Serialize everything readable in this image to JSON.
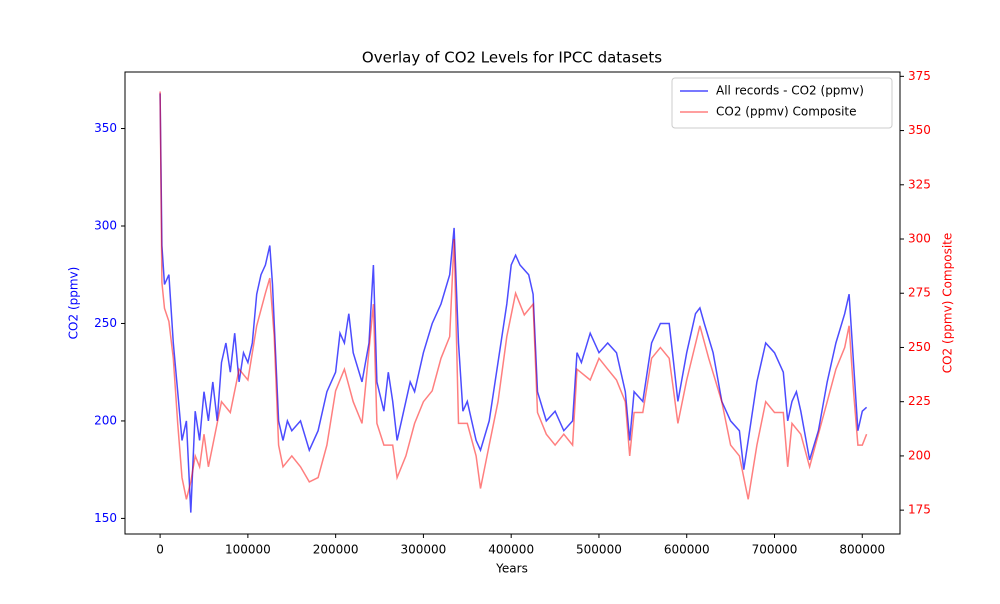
{
  "chart_data": {
    "type": "line",
    "title": "Overlay of CO2 Levels for IPCC datasets",
    "xlabel": "Years",
    "ylabel": "CO2 (ppmv)",
    "y2label": "CO2 (ppmv) Composite",
    "xlim": [
      -40000,
      843000
    ],
    "xticks": [
      0,
      100000,
      200000,
      300000,
      400000,
      500000,
      600000,
      700000,
      800000
    ],
    "ylim": [
      142,
      379
    ],
    "yticks": [
      150,
      200,
      250,
      300,
      350
    ],
    "ycolor": "#0000ff",
    "y2lim": [
      164,
      377
    ],
    "y2ticks": [
      175,
      200,
      225,
      250,
      275,
      300,
      325,
      350,
      375
    ],
    "y2color": "#ff0000",
    "legend": "upper right",
    "series": [
      {
        "name": "All records - CO2 (ppmv)",
        "color": "#0000ff",
        "opacity": 0.7,
        "x": [
          0,
          2000,
          5000,
          10000,
          15000,
          20000,
          25000,
          30000,
          35000,
          40000,
          45000,
          50000,
          55000,
          60000,
          65000,
          70000,
          75000,
          80000,
          85000,
          90000,
          95000,
          100000,
          105000,
          110000,
          115000,
          120000,
          125000,
          128000,
          135000,
          140000,
          145000,
          150000,
          160000,
          170000,
          180000,
          190000,
          200000,
          205000,
          210000,
          215000,
          220000,
          230000,
          238000,
          243000,
          247000,
          255000,
          260000,
          265000,
          270000,
          275000,
          285000,
          290000,
          300000,
          310000,
          320000,
          330000,
          335000,
          340000,
          345000,
          350000,
          360000,
          365000,
          375000,
          385000,
          395000,
          400000,
          405000,
          410000,
          420000,
          425000,
          430000,
          440000,
          450000,
          460000,
          470000,
          475000,
          480000,
          490000,
          500000,
          510000,
          520000,
          530000,
          535000,
          540000,
          550000,
          560000,
          570000,
          580000,
          585000,
          590000,
          600000,
          610000,
          615000,
          620000,
          630000,
          640000,
          650000,
          660000,
          665000,
          670000,
          680000,
          690000,
          700000,
          710000,
          715000,
          720000,
          725000,
          730000,
          740000,
          750000,
          760000,
          770000,
          780000,
          785000,
          790000,
          795000,
          800000,
          805000
        ],
        "values": [
          368,
          290,
          270,
          275,
          240,
          215,
          190,
          200,
          153,
          205,
          190,
          215,
          200,
          220,
          200,
          230,
          240,
          225,
          245,
          220,
          235,
          230,
          240,
          265,
          275,
          280,
          290,
          270,
          200,
          190,
          200,
          195,
          200,
          185,
          195,
          215,
          225,
          245,
          240,
          255,
          235,
          220,
          240,
          280,
          220,
          205,
          225,
          210,
          190,
          200,
          220,
          215,
          235,
          250,
          260,
          275,
          299,
          240,
          205,
          210,
          190,
          185,
          200,
          230,
          260,
          280,
          285,
          280,
          275,
          265,
          215,
          200,
          205,
          195,
          200,
          235,
          230,
          245,
          235,
          240,
          235,
          215,
          190,
          215,
          210,
          240,
          250,
          250,
          230,
          210,
          235,
          255,
          258,
          250,
          235,
          210,
          200,
          195,
          175,
          190,
          220,
          240,
          235,
          225,
          200,
          210,
          215,
          205,
          180,
          195,
          220,
          240,
          255,
          265,
          230,
          195,
          205,
          207
        ]
      },
      {
        "name": "CO2 (ppmv) Composite",
        "color": "#ff0000",
        "opacity": 0.5,
        "axis": "y2",
        "x": [
          0,
          2000,
          5000,
          10000,
          15000,
          20000,
          25000,
          30000,
          35000,
          40000,
          45000,
          50000,
          55000,
          60000,
          70000,
          80000,
          90000,
          100000,
          110000,
          120000,
          125000,
          130000,
          135000,
          140000,
          150000,
          160000,
          170000,
          180000,
          190000,
          200000,
          210000,
          220000,
          230000,
          243000,
          247000,
          255000,
          265000,
          270000,
          280000,
          290000,
          300000,
          310000,
          320000,
          330000,
          335000,
          340000,
          350000,
          360000,
          365000,
          375000,
          385000,
          395000,
          405000,
          415000,
          425000,
          430000,
          440000,
          450000,
          460000,
          470000,
          475000,
          490000,
          500000,
          510000,
          520000,
          530000,
          535000,
          540000,
          550000,
          560000,
          570000,
          580000,
          585000,
          590000,
          600000,
          615000,
          625000,
          640000,
          650000,
          660000,
          665000,
          670000,
          680000,
          690000,
          700000,
          710000,
          715000,
          720000,
          730000,
          740000,
          750000,
          760000,
          770000,
          780000,
          785000,
          790000,
          795000,
          800000,
          805000
        ],
        "values": [
          368,
          280,
          268,
          262,
          245,
          215,
          190,
          180,
          188,
          200,
          195,
          210,
          195,
          205,
          225,
          220,
          240,
          235,
          260,
          275,
          282,
          255,
          205,
          195,
          200,
          195,
          188,
          190,
          205,
          230,
          240,
          225,
          215,
          270,
          215,
          205,
          205,
          190,
          200,
          215,
          225,
          230,
          245,
          255,
          300,
          215,
          215,
          200,
          185,
          205,
          225,
          255,
          275,
          265,
          270,
          220,
          210,
          205,
          210,
          205,
          240,
          235,
          245,
          240,
          235,
          225,
          200,
          220,
          220,
          245,
          250,
          245,
          230,
          215,
          235,
          260,
          245,
          225,
          205,
          200,
          190,
          180,
          205,
          225,
          220,
          220,
          195,
          215,
          210,
          195,
          210,
          225,
          240,
          250,
          260,
          230,
          205,
          205,
          210
        ]
      }
    ]
  }
}
